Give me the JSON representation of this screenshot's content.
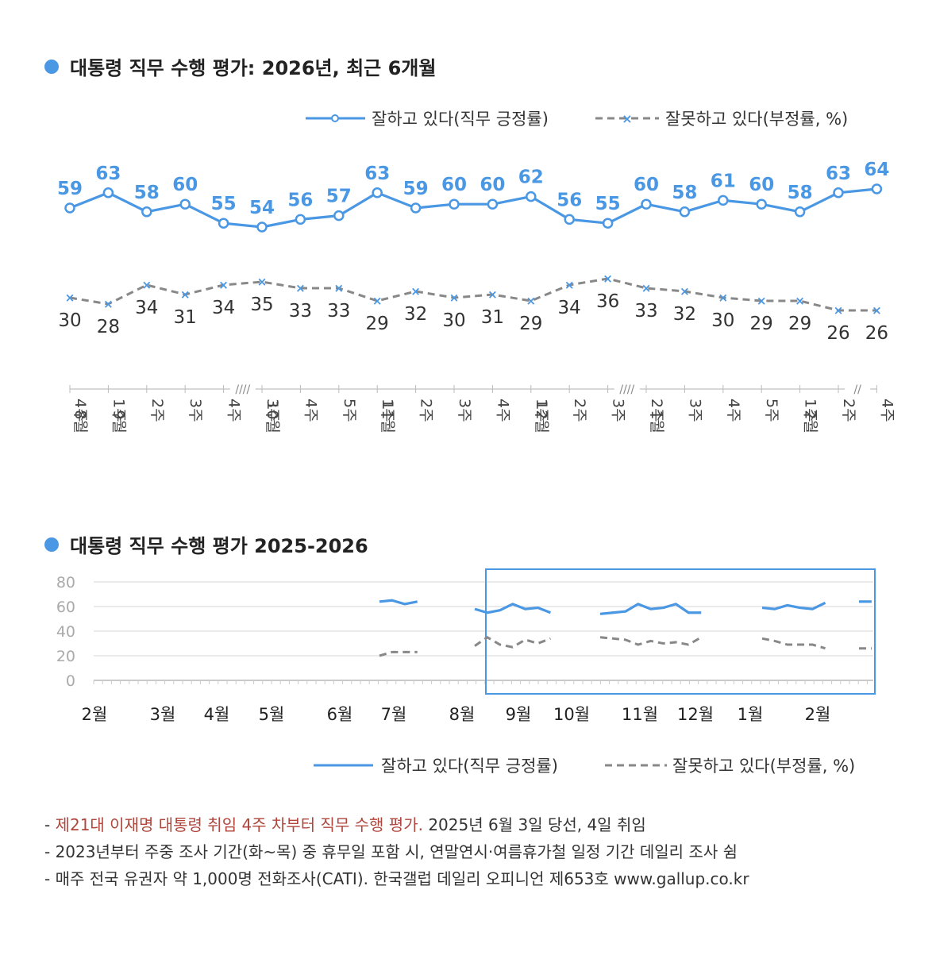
{
  "colors": {
    "approve": "#4a97e3",
    "disapprove": "#888888",
    "accent_red": "#b0463c",
    "grid": "#dddddd"
  },
  "chart_data": [
    {
      "type": "line",
      "title": "대통령 직무 수행 평가: 2026년, 최근 6개월",
      "legend": [
        "잘하고 있다(직무 긍정률)",
        "잘못하고 있다(부정률, %)"
      ],
      "week_labels": [
        "4주",
        "1주",
        "2주",
        "3주",
        "4주",
        "3주",
        "4주",
        "5주",
        "1주",
        "2주",
        "3주",
        "4주",
        "1주",
        "2주",
        "3주",
        "2주",
        "3주",
        "4주",
        "5주",
        "1주",
        "2주",
        "4주"
      ],
      "month_labels": [
        {
          "index": 0,
          "label": "8월"
        },
        {
          "index": 1,
          "label": "9월"
        },
        {
          "index": 5,
          "label": "10월"
        },
        {
          "index": 8,
          "label": "11월"
        },
        {
          "index": 12,
          "label": "12월"
        },
        {
          "index": 15,
          "label": "1월"
        },
        {
          "index": 19,
          "label": "2월"
        }
      ],
      "break_marks": [
        {
          "after": 4,
          "label": "////"
        },
        {
          "after": 14,
          "label": "////"
        },
        {
          "after": 20,
          "label": "//"
        }
      ],
      "series": [
        {
          "name": "잘하고 있다(직무 긍정률)",
          "values": [
            59,
            63,
            58,
            60,
            55,
            54,
            56,
            57,
            63,
            59,
            60,
            60,
            62,
            56,
            55,
            60,
            58,
            61,
            60,
            58,
            63,
            64
          ]
        },
        {
          "name": "잘못하고 있다(부정률, %)",
          "values": [
            30,
            28,
            34,
            31,
            34,
            35,
            33,
            33,
            29,
            32,
            30,
            31,
            29,
            34,
            36,
            33,
            32,
            30,
            29,
            29,
            26,
            26
          ]
        }
      ]
    },
    {
      "type": "line",
      "title": "대통령 직무 수행 평가 2025-2026",
      "legend": [
        "잘하고 있다(직무 긍정률)",
        "잘못하고 있다(부정률, %)"
      ],
      "y_ticks": [
        "80",
        "60",
        "40",
        "20",
        "0"
      ],
      "ylim": [
        0,
        80
      ],
      "month_labels": [
        "2월",
        "3월",
        "4월",
        "5월",
        "6월",
        "7월",
        "8월",
        "9월",
        "10월",
        "11월",
        "12월",
        "1월",
        "2월"
      ],
      "series": [
        {
          "name": "잘하고 있다(직무 긍정률)",
          "segments": [
            [
              64,
              65,
              62,
              64
            ],
            [
              58,
              55,
              57,
              62,
              58,
              59,
              55
            ],
            [
              54,
              55,
              56,
              62,
              58,
              59,
              62,
              55,
              55
            ],
            [
              59,
              58,
              61,
              59,
              58,
              63
            ],
            [
              64,
              64
            ]
          ]
        },
        {
          "name": "잘못하고 있다(부정률, %)",
          "segments": [
            [
              20,
              23,
              23,
              23
            ],
            [
              28,
              35,
              29,
              27,
              33,
              30,
              34
            ],
            [
              35,
              34,
              33,
              29,
              32,
              30,
              31,
              29,
              35
            ],
            [
              34,
              32,
              29,
              29,
              29,
              26
            ],
            [
              26,
              26
            ]
          ]
        }
      ]
    }
  ],
  "notes": [
    {
      "red": "제21대 이재명 대통령 취임 4주 차부터 직무 수행 평가.",
      "rest": " 2025년 6월 3일 당선, 4일 취임"
    },
    {
      "red": "",
      "rest": "2023년부터 주중 조사 기간(화~목) 중 휴무일 포함 시, 연말연시·여름휴가철 일정 기간 데일리 조사 쉼"
    },
    {
      "red": "",
      "rest": "매주 전국 유권자 약 1,000명 전화조사(CATI). 한국갤럽 데일리 오피니언 제653호 www.gallup.co.kr"
    }
  ]
}
